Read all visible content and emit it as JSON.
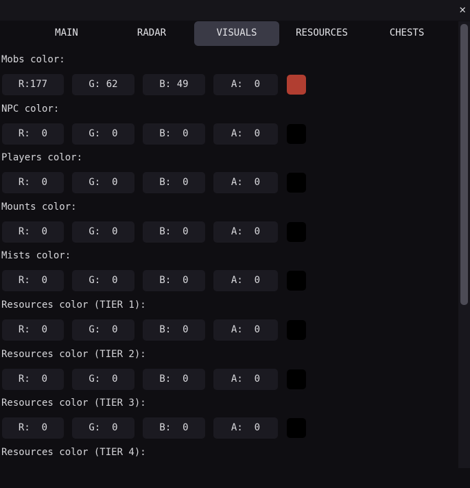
{
  "window": {
    "close_icon": "close-icon"
  },
  "tabs": [
    {
      "label": "MAIN",
      "active": false
    },
    {
      "label": "RADAR",
      "active": false
    },
    {
      "label": "VISUALS",
      "active": true
    },
    {
      "label": "RESOURCES",
      "active": false
    },
    {
      "label": "CHESTS",
      "active": false
    }
  ],
  "colors": [
    {
      "label": "Mobs color:",
      "r": "R:177",
      "g": "G: 62",
      "b": "B: 49",
      "a": "A:  0",
      "swatch": "#b13e31"
    },
    {
      "label": "NPC color:",
      "r": "R:  0",
      "g": "G:  0",
      "b": "B:  0",
      "a": "A:  0",
      "swatch": "#000000"
    },
    {
      "label": "Players color:",
      "r": "R:  0",
      "g": "G:  0",
      "b": "B:  0",
      "a": "A:  0",
      "swatch": "#000000"
    },
    {
      "label": "Mounts color:",
      "r": "R:  0",
      "g": "G:  0",
      "b": "B:  0",
      "a": "A:  0",
      "swatch": "#000000"
    },
    {
      "label": "Mists color:",
      "r": "R:  0",
      "g": "G:  0",
      "b": "B:  0",
      "a": "A:  0",
      "swatch": "#000000"
    },
    {
      "label": "Resources color (TIER 1):",
      "r": "R:  0",
      "g": "G:  0",
      "b": "B:  0",
      "a": "A:  0",
      "swatch": "#000000"
    },
    {
      "label": "Resources color (TIER 2):",
      "r": "R:  0",
      "g": "G:  0",
      "b": "B:  0",
      "a": "A:  0",
      "swatch": "#000000"
    },
    {
      "label": "Resources color (TIER 3):",
      "r": "R:  0",
      "g": "G:  0",
      "b": "B:  0",
      "a": "A:  0",
      "swatch": "#000000"
    },
    {
      "label": "Resources color (TIER 4):"
    }
  ],
  "scrollbar": {
    "position_fraction": 0.0,
    "visible_fraction": 0.63
  }
}
